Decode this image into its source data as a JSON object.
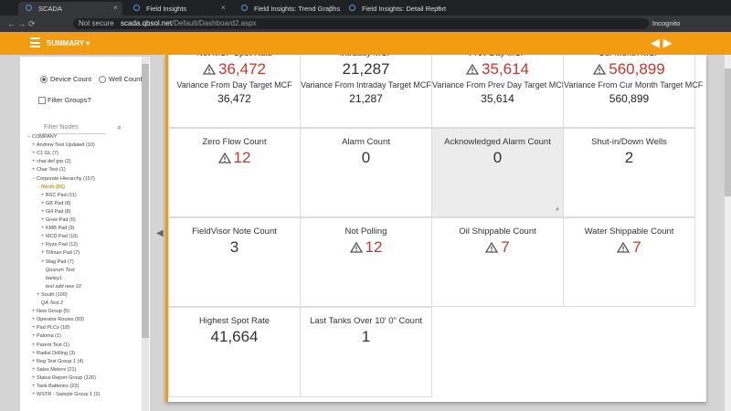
{
  "browser": {
    "tabs": [
      "SCADA",
      "Field Insights",
      "Field Insights: Trend Graphs",
      "Field Insights: Detail Report"
    ],
    "security": "Not secure",
    "url_host": "scada.qbsol.net",
    "url_path": "/Default/Dashboard2.aspx",
    "mode": "Incognito"
  },
  "header": {
    "menu": "SUMMARY"
  },
  "sidebar": {
    "options": [
      {
        "label": "Device Count",
        "checked": true
      },
      {
        "label": "Well Count",
        "checked": false
      }
    ],
    "filter_groups": "Filter Groups?",
    "filter_placeholder": "Filter Nodes",
    "tree": [
      {
        "label": "COMPANY",
        "level": 0,
        "open": true
      },
      {
        "label": "Andrew Test Updated (10)",
        "level": 1,
        "open": false
      },
      {
        "label": "C1 GL (7)",
        "level": 1,
        "open": false
      },
      {
        "label": "char def grp (2)",
        "level": 1,
        "open": false
      },
      {
        "label": "Char Test (1)",
        "level": 1,
        "open": false
      },
      {
        "label": "Corporate Hierarchy (157)",
        "level": 1,
        "open": true
      },
      {
        "label": "North (81)",
        "level": 2,
        "open": true,
        "selected": true
      },
      {
        "label": "BSC Pad (11)",
        "level": 3,
        "open": false
      },
      {
        "label": "GB Pad (8)",
        "level": 3,
        "open": false
      },
      {
        "label": "Gill Pad (8)",
        "level": 3,
        "open": false
      },
      {
        "label": "Grow Pad (6)",
        "level": 3,
        "open": false
      },
      {
        "label": "KMB Pad (9)",
        "level": 3,
        "open": false
      },
      {
        "label": "MCD Pad (10)",
        "level": 3,
        "open": false
      },
      {
        "label": "Ryze Pad (12)",
        "level": 3,
        "open": false
      },
      {
        "label": "Tillman Pad (7)",
        "level": 3,
        "open": false
      },
      {
        "label": "Wag Pad (7)",
        "level": 3,
        "open": false
      },
      {
        "label": "Quorum Test",
        "level": 3,
        "italic": true
      },
      {
        "label": "barley1",
        "level": 3,
        "italic": true
      },
      {
        "label": "test add new 10",
        "level": 3,
        "italic": true
      },
      {
        "label": "South (100)",
        "level": 2,
        "open": false
      },
      {
        "label": "QA Test 2",
        "level": 2,
        "italic": true
      },
      {
        "label": "New Group (5)",
        "level": 1,
        "open": false
      },
      {
        "label": "Operator Routes (83)",
        "level": 1,
        "open": false
      },
      {
        "label": "Pad PLCs (18)",
        "level": 1,
        "open": false
      },
      {
        "label": "Paloma (1)",
        "level": 1,
        "open": false
      },
      {
        "label": "Parent Test (1)",
        "level": 1,
        "open": false
      },
      {
        "label": "Radial Drilling (3)",
        "level": 1,
        "open": false
      },
      {
        "label": "Reg Test Group 1 (4)",
        "level": 1,
        "open": false
      },
      {
        "label": "Sales Meters (21)",
        "level": 1,
        "open": false
      },
      {
        "label": "Status Report Group (126)",
        "level": 1,
        "open": false
      },
      {
        "label": "Tank Batteries (23)",
        "level": 1,
        "open": false
      },
      {
        "label": "WSTR - Sample Group 1 (2)",
        "level": 1,
        "open": false
      }
    ]
  },
  "tiles": [
    {
      "title": "Net MCF Spot Rate",
      "value": "36,472",
      "warn": true,
      "sub_title": "Variance From Day Target MCF",
      "sub_value": "36,472"
    },
    {
      "title": "Intraday MCF",
      "value": "21,287",
      "warn": false,
      "sub_title": "Variance From Intraday Target MCF",
      "sub_value": "21,287"
    },
    {
      "title": "Prev Day MCF",
      "value": "35,614",
      "warn": true,
      "sub_title": "Variance From Prev Day Target MCF",
      "sub_value": "35,614"
    },
    {
      "title": "Cur Month MCF",
      "value": "560,899",
      "warn": true,
      "sub_title": "Variance From Cur Month Target MCF",
      "sub_value": "560,899"
    },
    {
      "title": "Zero Flow Count",
      "value": "12",
      "warn": true
    },
    {
      "title": "Alarm Count",
      "value": "0",
      "warn": false
    },
    {
      "title": "Acknowledged Alarm Count",
      "value": "0",
      "warn": false,
      "highlight": true
    },
    {
      "title": "Shut-in/Down Wells",
      "value": "2",
      "warn": false
    },
    {
      "title": "FieldVisor Note Count",
      "value": "3",
      "warn": false
    },
    {
      "title": "Not Polling",
      "value": "12",
      "warn": true
    },
    {
      "title": "Oil Shippable Count",
      "value": "7",
      "warn": true
    },
    {
      "title": "Water Shippable Count",
      "value": "7",
      "warn": true
    },
    {
      "title": "Highest Spot Rate",
      "value": "41,664",
      "warn": false
    },
    {
      "title": "Last Tanks Over 10' 0\" Count",
      "value": "1",
      "warn": false
    }
  ]
}
